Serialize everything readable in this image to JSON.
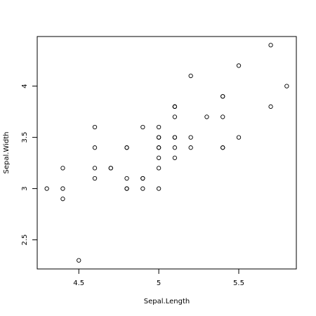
{
  "chart_data": {
    "type": "scatter",
    "x_label": "Sepal.Length",
    "y_label": "Sepal.Width",
    "x": [
      5.1,
      4.9,
      4.7,
      4.6,
      5.0,
      5.4,
      4.6,
      5.0,
      4.4,
      4.9,
      5.4,
      4.8,
      4.8,
      4.3,
      5.8,
      5.7,
      5.4,
      5.1,
      5.7,
      5.1,
      5.4,
      5.1,
      4.6,
      5.1,
      4.8,
      5.0,
      5.0,
      5.2,
      5.2,
      4.7,
      4.8,
      5.4,
      5.2,
      5.5,
      4.9,
      5.0,
      5.5,
      4.9,
      4.4,
      5.1,
      5.0,
      4.5,
      4.4,
      5.0,
      5.1,
      4.8,
      5.1,
      4.6,
      5.3,
      5.0
    ],
    "y": [
      3.5,
      3.0,
      3.2,
      3.1,
      3.6,
      3.9,
      3.4,
      3.4,
      2.9,
      3.1,
      3.7,
      3.4,
      3.0,
      3.0,
      4.0,
      4.4,
      3.9,
      3.5,
      3.8,
      3.8,
      3.4,
      3.7,
      3.6,
      3.3,
      3.4,
      3.0,
      3.4,
      3.5,
      3.4,
      3.2,
      3.1,
      3.4,
      4.1,
      4.2,
      3.1,
      3.2,
      3.5,
      3.6,
      3.0,
      3.4,
      3.5,
      2.3,
      3.2,
      3.5,
      3.8,
      3.0,
      3.8,
      3.2,
      3.7,
      3.3
    ],
    "color": "#000000",
    "xlim": [
      4.24,
      5.86
    ],
    "ylim": [
      2.216,
      4.484
    ],
    "xticks": [
      4.5,
      5.0,
      5.5
    ],
    "yticks": [
      2.5,
      3.0,
      3.5,
      4.0
    ]
  }
}
